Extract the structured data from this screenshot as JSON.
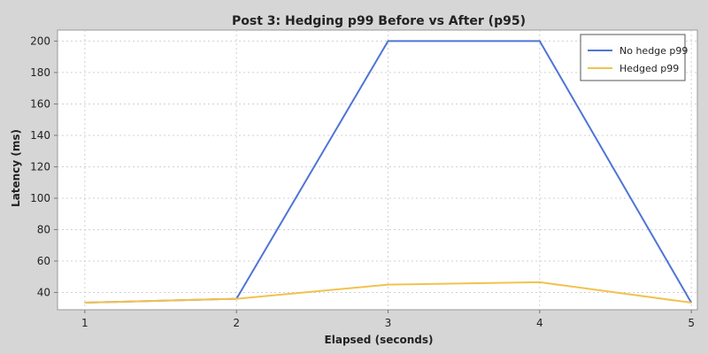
{
  "chart_data": {
    "type": "line",
    "title": "Post 3: Hedging p99 Before vs After (p95)",
    "xlabel": "Elapsed (seconds)",
    "ylabel": "Latency (ms)",
    "x": [
      1,
      2,
      3,
      4,
      5
    ],
    "xlim": [
      0.82,
      5.04
    ],
    "ylim": [
      29,
      207
    ],
    "x_ticks": [
      1,
      2,
      3,
      4,
      5
    ],
    "y_ticks": [
      40,
      60,
      80,
      100,
      120,
      140,
      160,
      180,
      200
    ],
    "grid": true,
    "legend_position": "top-right",
    "series": [
      {
        "name": "No hedge p99",
        "color": "#4f74d6",
        "values": [
          33.5,
          36,
          200,
          200,
          33.5
        ]
      },
      {
        "name": "Hedged p99",
        "color": "#f2c24f",
        "values": [
          33.5,
          36,
          45,
          46.5,
          33.5
        ]
      }
    ]
  }
}
